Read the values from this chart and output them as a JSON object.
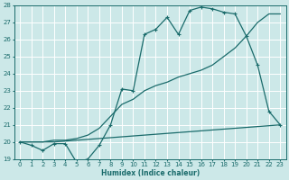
{
  "xlabel": "Humidex (Indice chaleur)",
  "bg_color": "#cce8e8",
  "line_color": "#1a6b6b",
  "grid_color": "#ffffff",
  "xlim": [
    -0.5,
    23.5
  ],
  "ylim": [
    19,
    28
  ],
  "xticks": [
    0,
    1,
    2,
    3,
    4,
    5,
    6,
    7,
    8,
    9,
    10,
    11,
    12,
    13,
    14,
    15,
    16,
    17,
    18,
    19,
    20,
    21,
    22,
    23
  ],
  "yticks": [
    19,
    20,
    21,
    22,
    23,
    24,
    25,
    26,
    27,
    28
  ],
  "line1_x": [
    0,
    1,
    2,
    3,
    4,
    5,
    6,
    7,
    8,
    9,
    10,
    11,
    12,
    13,
    14,
    15,
    16,
    17,
    18,
    19,
    20,
    21,
    22,
    23
  ],
  "line1_y": [
    20.0,
    19.8,
    19.5,
    19.9,
    19.9,
    18.8,
    19.0,
    19.8,
    21.0,
    23.1,
    23.0,
    26.3,
    26.6,
    27.3,
    26.3,
    27.7,
    27.9,
    27.8,
    27.6,
    27.5,
    26.2,
    24.5,
    21.8,
    21.0
  ],
  "line2_x": [
    0,
    2,
    3,
    4,
    5,
    6,
    7,
    8,
    9,
    10,
    11,
    12,
    13,
    14,
    15,
    16,
    17,
    18,
    19,
    20,
    21,
    22,
    23
  ],
  "line2_y": [
    20.0,
    20.0,
    20.1,
    20.1,
    20.2,
    20.4,
    20.8,
    21.5,
    22.2,
    22.5,
    23.0,
    23.3,
    23.5,
    23.8,
    24.0,
    24.2,
    24.5,
    25.0,
    25.5,
    26.2,
    27.0,
    27.5,
    27.5
  ],
  "line3_x": [
    0,
    1,
    2,
    3,
    4,
    5,
    6,
    7,
    8,
    9,
    10,
    11,
    12,
    13,
    14,
    15,
    16,
    17,
    18,
    19,
    20,
    21,
    22,
    23
  ],
  "line3_y": [
    20.0,
    20.0,
    20.0,
    20.0,
    20.05,
    20.1,
    20.15,
    20.2,
    20.25,
    20.3,
    20.35,
    20.4,
    20.45,
    20.5,
    20.55,
    20.6,
    20.65,
    20.7,
    20.75,
    20.8,
    20.85,
    20.9,
    20.95,
    21.0
  ]
}
